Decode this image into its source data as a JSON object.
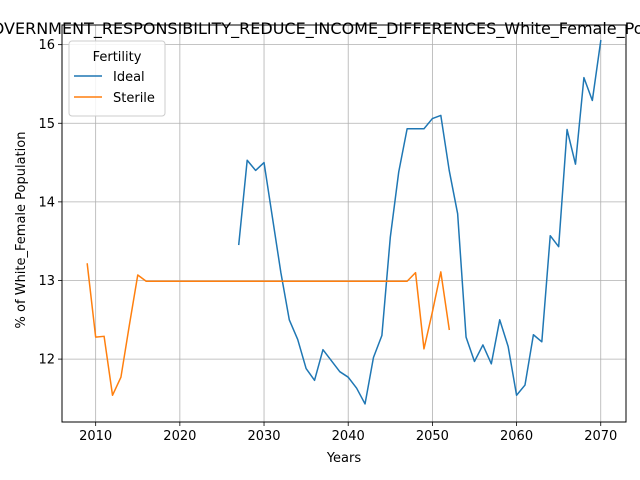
{
  "chart_data": {
    "type": "line",
    "title": "GOVERNMENT_RESPONSIBILITY_REDUCE_INCOME_DIFFERENCES_White_Female_Population",
    "xlabel": "Years",
    "ylabel": "% of White_Female Population",
    "xlim": [
      2006,
      2073
    ],
    "ylim": [
      11.2,
      16.25
    ],
    "xticks": [
      2010,
      2020,
      2030,
      2040,
      2050,
      2060,
      2070
    ],
    "yticks": [
      12,
      13,
      14,
      15,
      16
    ],
    "grid": true,
    "legend": {
      "title": "Fertility",
      "placement": "upper left"
    },
    "series": [
      {
        "name": "Ideal",
        "color": "#1f77b4",
        "x": [
          2027,
          2028,
          2029,
          2030,
          2031,
          2032,
          2033,
          2034,
          2035,
          2036,
          2037,
          2038,
          2039,
          2040,
          2041,
          2042,
          2043,
          2044,
          2045,
          2046,
          2047,
          2048,
          2049,
          2050,
          2051,
          2052,
          2053,
          2054,
          2055,
          2056,
          2057,
          2058,
          2059,
          2060,
          2061,
          2062,
          2063,
          2064,
          2065,
          2066,
          2067,
          2068,
          2069,
          2070
        ],
        "y": [
          13.46,
          14.53,
          14.4,
          14.5,
          13.8,
          13.1,
          12.5,
          12.25,
          11.88,
          11.73,
          12.12,
          11.98,
          11.84,
          11.77,
          11.63,
          11.43,
          12.02,
          12.3,
          13.55,
          14.38,
          14.93,
          14.93,
          14.93,
          15.06,
          15.1,
          14.4,
          13.85,
          12.28,
          11.97,
          12.18,
          11.94,
          12.5,
          12.16,
          11.54,
          11.67,
          12.31,
          12.22,
          13.57,
          13.43,
          14.92,
          14.48,
          15.58,
          15.29,
          16.05
        ]
      },
      {
        "name": "Sterile",
        "color": "#ff7f0e",
        "x": [
          2009,
          2010,
          2011,
          2012,
          2013,
          2014,
          2015,
          2016,
          2017,
          2018,
          2019,
          2020,
          2021,
          2022,
          2023,
          2024,
          2025,
          2026,
          2027,
          2028,
          2029,
          2030,
          2031,
          2032,
          2033,
          2034,
          2035,
          2036,
          2037,
          2038,
          2039,
          2040,
          2041,
          2042,
          2043,
          2044,
          2045,
          2046,
          2047,
          2048,
          2049,
          2050,
          2051,
          2052
        ],
        "y": [
          13.21,
          12.28,
          12.29,
          11.54,
          11.77,
          12.43,
          13.07,
          12.99,
          12.99,
          12.99,
          12.99,
          12.99,
          12.99,
          12.99,
          12.99,
          12.99,
          12.99,
          12.99,
          12.99,
          12.99,
          12.99,
          12.99,
          12.99,
          12.99,
          12.99,
          12.99,
          12.99,
          12.99,
          12.99,
          12.99,
          12.99,
          12.99,
          12.99,
          12.99,
          12.99,
          12.99,
          12.99,
          12.99,
          12.99,
          13.1,
          12.13,
          12.6,
          13.11,
          12.38
        ]
      }
    ]
  }
}
